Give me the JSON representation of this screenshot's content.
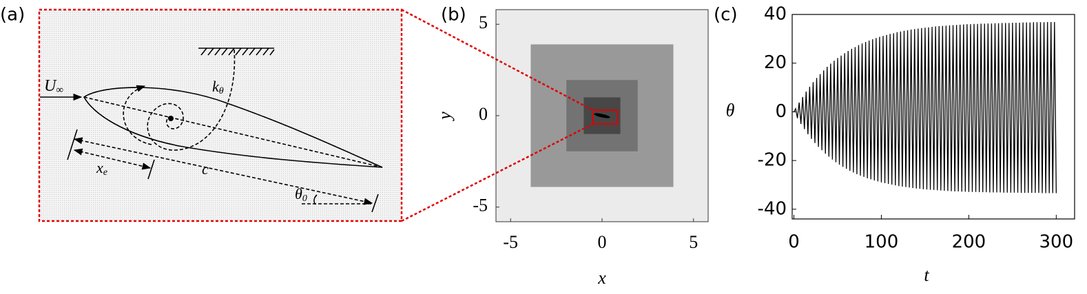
{
  "diagram": {
    "label": "(a)",
    "labels": {
      "flow": {
        "base": "U",
        "sub": "∞"
      },
      "spring": {
        "base": "k",
        "sub": "θ"
      },
      "elastic_axis": {
        "base": "x",
        "sub": "e"
      },
      "chord": {
        "base": "c"
      },
      "angle": {
        "base": "θ",
        "sub": "0"
      }
    }
  },
  "chart_data": [
    {
      "type": "domain",
      "label": "(b)",
      "xlabel": "x",
      "ylabel": "y",
      "xlim": [
        -5.8,
        5.8
      ],
      "ylim": [
        -5.8,
        5.8
      ],
      "xticks": [
        -5,
        0,
        5
      ],
      "yticks": [
        -5,
        0,
        5
      ],
      "background_color": "#ebebeb",
      "regions": [
        {
          "x0": -3.9,
          "x1": 3.9,
          "y0": -3.9,
          "y1": 3.9,
          "color": "#999999"
        },
        {
          "x0": -1.95,
          "x1": 1.95,
          "y0": -1.95,
          "y1": 1.95,
          "color": "#737373"
        },
        {
          "x0": -1,
          "x1": 1,
          "y0": -1,
          "y1": 1,
          "color": "#474747"
        }
      ],
      "zoom_box": {
        "x0": -0.5,
        "x1": 0.85,
        "y0": -0.45,
        "y1": 0.3,
        "color": "#e00000"
      }
    },
    {
      "type": "line",
      "label": "(c)",
      "xlabel": "t",
      "ylabel": "θ",
      "color": "#000000",
      "xlim": [
        -2,
        321
      ],
      "ylim": [
        -44,
        40
      ],
      "xticks": [
        0,
        100,
        200,
        300
      ],
      "yticks": [
        -40,
        -20,
        0,
        20,
        40
      ],
      "x": [
        0,
        2,
        4,
        6,
        8,
        10,
        12,
        14,
        16,
        18,
        20,
        22,
        24,
        26,
        28,
        30,
        32,
        34,
        36,
        38,
        40,
        42,
        44,
        46,
        48,
        50,
        52,
        54,
        56,
        58,
        60,
        62,
        64,
        66,
        68,
        70,
        72,
        74,
        76,
        78,
        80,
        82,
        84,
        86,
        88,
        90,
        92,
        94,
        96,
        98,
        100,
        102,
        104,
        106,
        108,
        110,
        112,
        114,
        116,
        118,
        120,
        122,
        124,
        126,
        128,
        130,
        132,
        134,
        136,
        138,
        140,
        142,
        144,
        146,
        148,
        150,
        152,
        154,
        156,
        158,
        160,
        162,
        164,
        166,
        168,
        170,
        172,
        174,
        176,
        178,
        180,
        182,
        184,
        186,
        188,
        190,
        192,
        194,
        196,
        198,
        200,
        202,
        204,
        206,
        208,
        210,
        212,
        214,
        216,
        218,
        220,
        222,
        224,
        226,
        228,
        230,
        232,
        234,
        236,
        238,
        240,
        242,
        244,
        246,
        248,
        250,
        252,
        254,
        256,
        258,
        260,
        262,
        264,
        266,
        268,
        270,
        272,
        274,
        276,
        278,
        280,
        282,
        284,
        286,
        288,
        290,
        292,
        294,
        296,
        298,
        300
      ],
      "values": [
        0,
        1.3,
        -2.6,
        3.8,
        -5.0,
        6.1,
        -7.1,
        8.3,
        -9.2,
        10.3,
        -11.1,
        12.2,
        -12.8,
        13.9,
        -14.4,
        15.5,
        -15.8,
        17.0,
        -17.2,
        18.5,
        -18.4,
        19.8,
        -19.6,
        21.0,
        -20.7,
        22.1,
        -21.7,
        23.1,
        -22.6,
        24.1,
        -23.4,
        25.0,
        -24.2,
        25.9,
        -24.9,
        26.6,
        -25.6,
        27.4,
        -26.2,
        28.1,
        -26.7,
        28.7,
        -27.3,
        29.3,
        -27.7,
        29.8,
        -28.2,
        30.3,
        -28.6,
        30.8,
        -29.0,
        31.2,
        -29.3,
        31.6,
        -29.6,
        32.0,
        -29.9,
        32.3,
        -30.2,
        32.7,
        -30.5,
        33.0,
        -30.7,
        33.3,
        -30.9,
        33.5,
        -31.1,
        33.8,
        -31.3,
        34.0,
        -31.5,
        34.2,
        -31.6,
        34.4,
        -31.8,
        34.6,
        -31.9,
        34.7,
        -32.0,
        34.9,
        -32.1,
        35.1,
        -32.2,
        35.2,
        -32.3,
        35.3,
        -32.4,
        35.4,
        -32.5,
        35.5,
        -32.6,
        35.6,
        -32.7,
        35.7,
        -32.7,
        35.8,
        -32.8,
        35.9,
        -32.8,
        36.0,
        -32.9,
        36.0,
        -32.9,
        36.1,
        -32.9,
        36.1,
        -33.0,
        36.2,
        -33.0,
        36.2,
        -33.0,
        36.3,
        -33.1,
        36.3,
        -33.1,
        36.4,
        -33.1,
        36.4,
        -33.1,
        36.5,
        -33.2,
        36.5,
        -33.2,
        36.5,
        -33.2,
        36.6,
        -33.2,
        36.6,
        -33.2,
        36.6,
        -33.3,
        36.7,
        -33.3,
        36.7,
        -33.3,
        36.7,
        -33.3,
        36.8,
        -33.3,
        36.8,
        -33.3,
        36.8,
        -33.4,
        36.8,
        -33.4,
        36.9,
        -33.4,
        36.9,
        -33.4,
        36.9,
        -33.4
      ]
    }
  ]
}
